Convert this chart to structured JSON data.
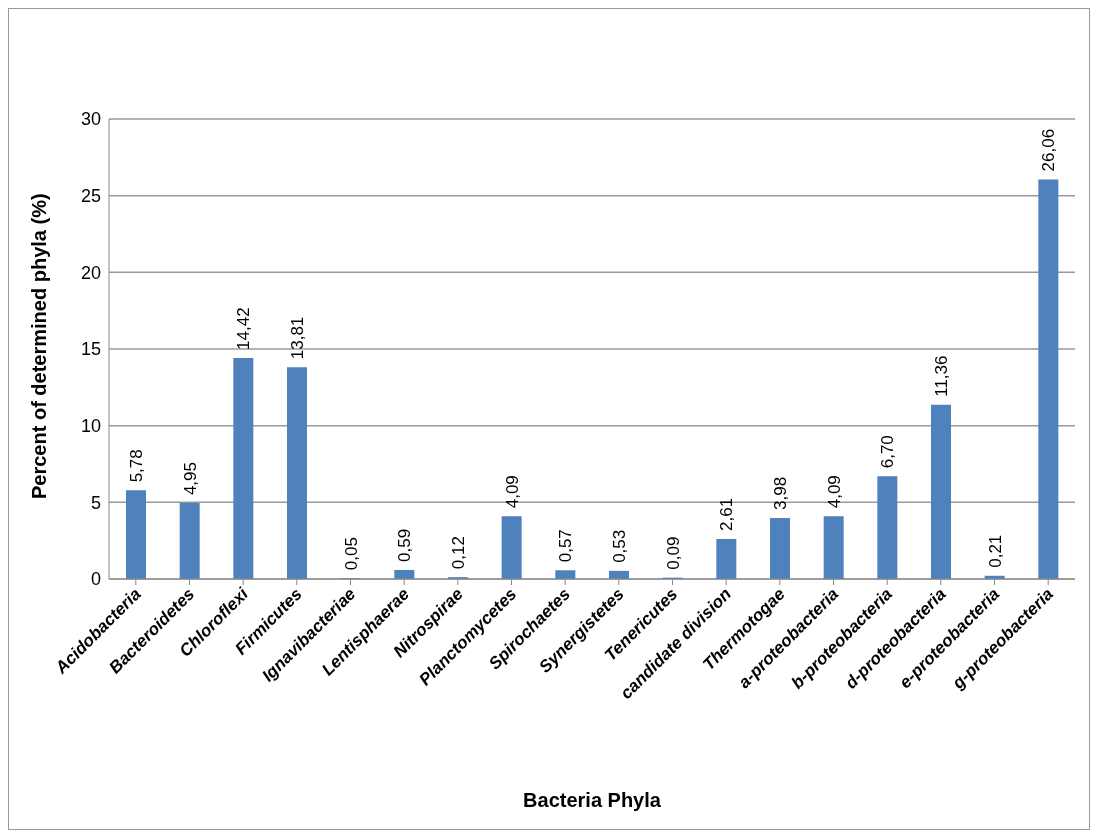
{
  "chart_data": {
    "type": "bar",
    "xlabel": "Bacteria Phyla",
    "ylabel": "Percent of determined phyla (%)",
    "categories": [
      "Acidobacteria",
      "Bacteroidetes",
      "Chloroflexi",
      "Firmicutes",
      "Ignavibacteriae",
      "Lentisphaerae",
      "Nitrospirae",
      "Planctomycetes",
      "Spirochaetes",
      "Synergistetes",
      "Tenericutes",
      "candidate division",
      "Thermotogae",
      "a-proteobacteria",
      "b-proteobacteria",
      "d-proteobacteria",
      "e-proteobacteria",
      "g-proteobacteria"
    ],
    "values": [
      5.78,
      4.95,
      14.42,
      13.81,
      0.05,
      0.59,
      0.12,
      4.09,
      0.57,
      0.53,
      0.09,
      2.61,
      3.98,
      4.09,
      6.7,
      11.36,
      0.21,
      26.06
    ],
    "value_labels": [
      "5,78",
      "4,95",
      "14,42",
      "13,81",
      "0,05",
      "0,59",
      "0,12",
      "4,09",
      "0,57",
      "0,53",
      "0,09",
      "2,61",
      "3,98",
      "4,09",
      "6,70",
      "11,36",
      "0,21",
      "26,06"
    ],
    "color": "#4f81bd",
    "ylim": [
      0,
      30
    ],
    "yticks": [
      0,
      5,
      10,
      15,
      20,
      25,
      30
    ],
    "grid": "y"
  }
}
